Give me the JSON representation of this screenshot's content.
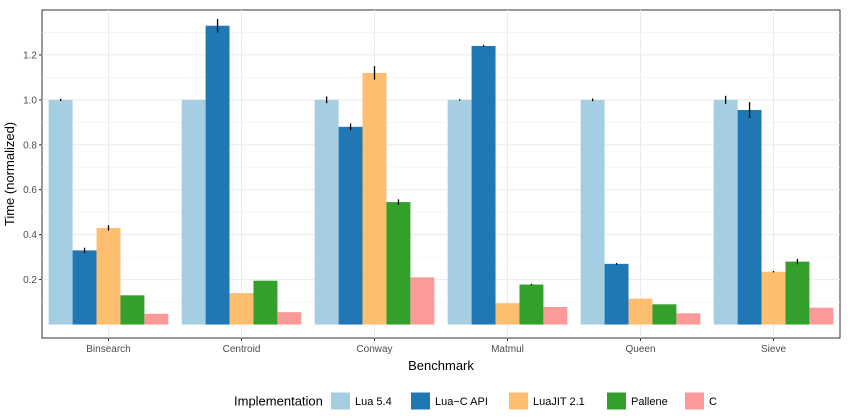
{
  "chart_data": {
    "type": "bar",
    "xlabel": "Benchmark",
    "ylabel": "Time (normalized)",
    "categories": [
      "Binsearch",
      "Centroid",
      "Conway",
      "Matmul",
      "Queen",
      "Sieve"
    ],
    "ylim": [
      -0.06,
      1.4
    ],
    "yticks": [
      0.2,
      0.4,
      0.6,
      0.8,
      1.0,
      1.2
    ],
    "ytick_labels": [
      "0.2",
      "0.4",
      "0.6",
      "0.8",
      "1.0",
      "1.2"
    ],
    "grid": true,
    "legend": {
      "title": "Implementation",
      "placement": "bottom"
    },
    "series": [
      {
        "name": "Lua 5.4",
        "color": "#a6cee3",
        "values": [
          1.0,
          1.0,
          1.0,
          1.0,
          1.0,
          1.0
        ],
        "errors": [
          0.005,
          0.0,
          0.015,
          0.003,
          0.006,
          0.018
        ]
      },
      {
        "name": "Lua−C API",
        "color": "#1f78b4",
        "values": [
          0.33,
          1.33,
          0.88,
          1.24,
          0.27,
          0.955
        ],
        "errors": [
          0.012,
          0.03,
          0.015,
          0.005,
          0.004,
          0.035
        ]
      },
      {
        "name": "LuaJIT 2.1",
        "color": "#fdbf6f",
        "values": [
          0.43,
          0.14,
          1.12,
          0.095,
          0.115,
          0.235
        ],
        "errors": [
          0.012,
          0.0,
          0.03,
          0.0,
          0.0,
          0.003
        ]
      },
      {
        "name": "Pallene",
        "color": "#33a02c",
        "values": [
          0.13,
          0.195,
          0.545,
          0.178,
          0.09,
          0.28
        ],
        "errors": [
          0.0,
          0.0,
          0.012,
          0.003,
          0.0,
          0.012
        ]
      },
      {
        "name": "C",
        "color": "#fb9a99",
        "values": [
          0.048,
          0.055,
          0.21,
          0.078,
          0.05,
          0.075
        ],
        "errors": [
          0.0,
          0.0,
          0.0,
          0.0,
          0.0,
          0.0
        ]
      }
    ]
  }
}
